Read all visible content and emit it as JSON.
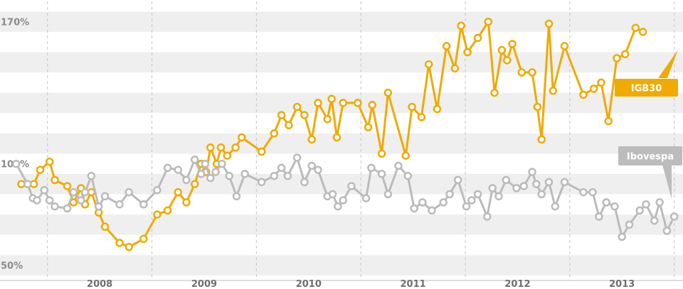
{
  "chart_data": {
    "type": "line",
    "ylim": [
      42.5,
      180
    ],
    "yticks": [
      {
        "value": 50,
        "label": "50%"
      },
      {
        "value": 100,
        "label": "100%"
      },
      {
        "value": 170,
        "label": "170%"
      }
    ],
    "xlim": [
      2007.6,
      2014.05
    ],
    "xticks": [
      "2008",
      "2009",
      "2010",
      "2011",
      "2012",
      "2013"
    ],
    "grid": "alternating horizontal bands every 10%; dashed vertical lines at year boundaries",
    "series": [
      {
        "name": "IGB30",
        "color": "#f0aa00",
        "x": [
          2007.75,
          2007.87,
          2007.93,
          2008.02,
          2008.07,
          2008.19,
          2008.25,
          2008.32,
          2008.36,
          2008.42,
          2008.49,
          2008.55,
          2008.69,
          2008.78,
          2008.92,
          2009.05,
          2009.15,
          2009.25,
          2009.33,
          2009.41,
          2009.47,
          2009.52,
          2009.56,
          2009.62,
          2009.66,
          2009.72,
          2009.8,
          2009.86,
          2010.05,
          2010.17,
          2010.24,
          2010.31,
          2010.39,
          2010.46,
          2010.53,
          2010.59,
          2010.68,
          2010.72,
          2010.77,
          2010.83,
          2010.97,
          2011.07,
          2011.11,
          2011.2,
          2011.26,
          2011.43,
          2011.49,
          2011.58,
          2011.65,
          2011.73,
          2011.82,
          2011.9,
          2011.96,
          2012.02,
          2012.12,
          2012.22,
          2012.28,
          2012.35,
          2012.4,
          2012.45,
          2012.54,
          2012.64,
          2012.69,
          2012.73,
          2012.8,
          2012.84,
          2012.95,
          2013.13,
          2013.23,
          2013.3,
          2013.37,
          2013.45,
          2013.53,
          2013.63,
          2013.7
        ],
        "y": [
          90,
          90,
          97,
          101,
          92,
          89,
          81,
          88,
          80,
          86,
          76,
          69,
          61,
          59,
          63,
          75,
          77,
          86,
          81,
          90,
          100,
          96,
          108,
          100,
          108,
          104,
          108,
          113,
          106,
          115,
          124,
          119,
          128,
          124,
          112,
          130,
          122,
          132,
          113,
          130,
          130,
          118,
          129,
          105,
          135,
          104,
          128,
          123,
          149,
          127,
          158,
          147,
          168,
          155,
          162,
          170,
          135,
          156,
          151,
          159,
          145,
          145,
          128,
          112,
          169,
          136,
          158,
          134,
          137,
          140,
          121,
          152,
          154,
          167,
          165
        ]
      },
      {
        "name": "Ibovespa",
        "color": "#bbbbbb",
        "x": [
          2007.7,
          2007.81,
          2007.86,
          2007.9,
          2007.97,
          2008.02,
          2008.07,
          2008.19,
          2008.25,
          2008.32,
          2008.36,
          2008.42,
          2008.49,
          2008.55,
          2008.69,
          2008.78,
          2008.92,
          2009.05,
          2009.15,
          2009.25,
          2009.33,
          2009.41,
          2009.47,
          2009.51,
          2009.56,
          2009.61,
          2009.67,
          2009.74,
          2009.81,
          2009.89,
          2010.05,
          2010.17,
          2010.24,
          2010.3,
          2010.39,
          2010.46,
          2010.53,
          2010.59,
          2010.68,
          2010.73,
          2010.78,
          2010.83,
          2010.91,
          2011.05,
          2011.1,
          2011.2,
          2011.26,
          2011.36,
          2011.45,
          2011.51,
          2011.59,
          2011.68,
          2011.79,
          2011.85,
          2011.93,
          2012.01,
          2012.06,
          2012.12,
          2012.21,
          2012.26,
          2012.32,
          2012.39,
          2012.49,
          2012.56,
          2012.64,
          2012.68,
          2012.73,
          2012.8,
          2012.86,
          2012.95,
          2013.13,
          2013.22,
          2013.28,
          2013.35,
          2013.43,
          2013.5,
          2013.57,
          2013.67,
          2013.73,
          2013.81,
          2013.86,
          2013.93,
          2014.0
        ],
        "y": [
          100,
          90,
          83,
          82,
          87,
          82,
          79,
          78,
          86,
          82,
          86,
          94,
          79,
          84,
          80,
          86,
          80,
          87,
          98,
          97,
          92,
          102,
          95,
          100,
          93,
          96,
          100,
          94,
          84,
          95,
          91,
          94,
          98,
          94,
          103,
          91,
          99,
          97,
          84,
          85,
          79,
          82,
          89,
          83,
          98,
          95,
          85,
          99,
          94,
          78,
          81,
          77,
          81,
          85,
          92,
          79,
          82,
          85,
          74,
          88,
          84,
          92,
          88,
          89,
          96,
          90,
          85,
          91,
          79,
          91,
          86,
          86,
          74,
          81,
          79,
          64,
          70,
          77,
          80,
          72,
          81,
          67,
          74
        ]
      }
    ],
    "legend": {
      "placement": "right, at each series' line end",
      "entries": [
        "IGB30",
        "Ibovespa"
      ]
    }
  }
}
